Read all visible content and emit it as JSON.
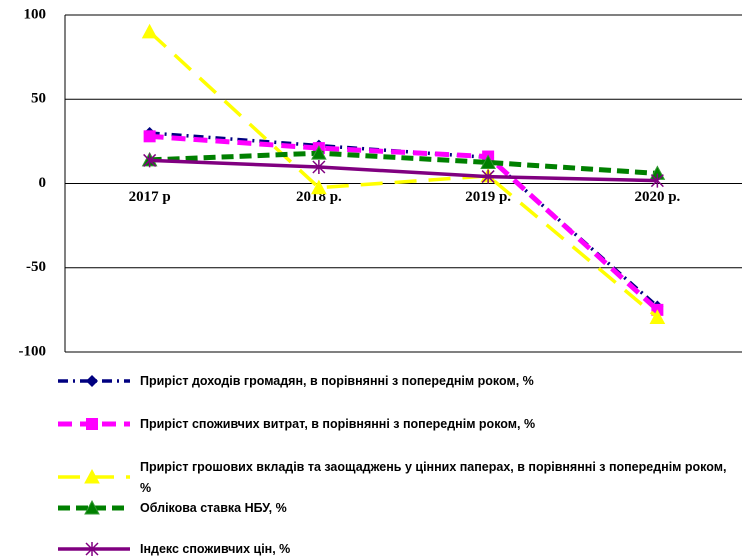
{
  "chart_data": {
    "type": "line",
    "categories": [
      "2017 р",
      "2018 р.",
      "2019 р.",
      "2020 р."
    ],
    "ylim": [
      -100,
      100
    ],
    "yticks": [
      -100,
      -50,
      0,
      50,
      100
    ],
    "grid": true,
    "series": [
      {
        "name": "Приріст доходів громадян, в порівнянні з попереднім роком, %",
        "color": "#000080",
        "values": [
          30,
          22.5,
          15.5,
          -73
        ]
      },
      {
        "name": "Приріст споживчих витрат, в порівнянні з попереднім роком, %",
        "color": "#ff00ff",
        "values": [
          28,
          21,
          16,
          -75
        ]
      },
      {
        "name": "Приріст грошових вкладів та заощаджень у цінних паперах, в порівнянні з попереднім роком, %",
        "color": "#ffff00",
        "values": [
          90,
          -2.5,
          4.5,
          -79.5
        ]
      },
      {
        "name": "Облікова ставка НБУ, %",
        "color": "#008000",
        "values": [
          14,
          18,
          12.5,
          6
        ]
      },
      {
        "name": "Індекс споживчих цін, %",
        "color": "#800080",
        "values": [
          13.7,
          9.8,
          4.1,
          1.7
        ]
      }
    ]
  }
}
